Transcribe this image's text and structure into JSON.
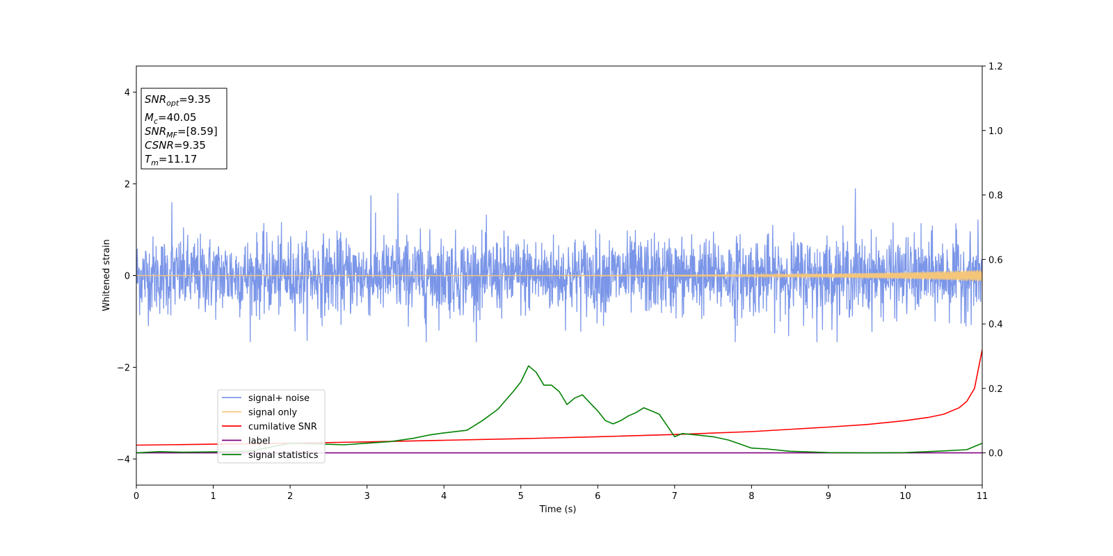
{
  "chart_data": {
    "type": "line",
    "xlabel": "Time (s)",
    "ylabel": "Whitened strain",
    "xlim": [
      0,
      11
    ],
    "ylim": [
      -4.57,
      4.57
    ],
    "y2lim": [
      -0.1,
      1.2
    ],
    "x_ticks": [
      0,
      1,
      2,
      3,
      4,
      5,
      6,
      7,
      8,
      9,
      10,
      11
    ],
    "y_ticks": [
      -4,
      -2,
      0,
      2,
      4
    ],
    "y_tick_labels": [
      "−4",
      "−2",
      "0",
      "2",
      "4"
    ],
    "y2_ticks": [
      0.0,
      0.2,
      0.4,
      0.6,
      0.8,
      1.0,
      1.2
    ],
    "y2_tick_labels": [
      "0.0",
      "0.2",
      "0.4",
      "0.6",
      "0.8",
      "1.0",
      "1.2"
    ],
    "grid": false,
    "legend_position": "lower-left",
    "annotation": [
      {
        "base": "SNR",
        "sub": "opt",
        "value": "=9.35"
      },
      {
        "base": "M",
        "sub": "c",
        "value": "=40.05"
      },
      {
        "base": "SNR",
        "sub": "MF",
        "value": "=[8.59]"
      },
      {
        "base": "CSNR",
        "sub": "",
        "value": "=9.35"
      },
      {
        "base": "T",
        "sub": "m",
        "value": "=11.17"
      }
    ],
    "series": [
      {
        "name": "signal+ noise",
        "color": "#7b96e8",
        "axis": "left",
        "kind": "noise",
        "amplitude_std": 0.42,
        "max": 1.9,
        "min": -1.45,
        "peaks": [
          [
            0.46,
            1.6
          ],
          [
            3.05,
            1.75
          ],
          [
            3.4,
            1.8
          ],
          [
            9.35,
            1.9
          ],
          [
            3.77,
            -1.45
          ],
          [
            7.79,
            -1.45
          ],
          [
            8.85,
            -1.45
          ]
        ]
      },
      {
        "name": "signal only",
        "color": "#f5c67a",
        "axis": "left",
        "kind": "chirp",
        "amp_start": 0.005,
        "amp_end": 0.13
      },
      {
        "name": "cumilative SNR",
        "color": "#ff0000",
        "axis": "right",
        "x": [
          0,
          1,
          2,
          3,
          4,
          5,
          6,
          7,
          8,
          9,
          9.5,
          10,
          10.3,
          10.5,
          10.7,
          10.8,
          10.9,
          11
        ],
        "y": [
          0.024,
          0.027,
          0.03,
          0.034,
          0.039,
          0.044,
          0.05,
          0.057,
          0.066,
          0.08,
          0.088,
          0.1,
          0.11,
          0.12,
          0.14,
          0.16,
          0.2,
          0.32
        ]
      },
      {
        "name": "label",
        "color": "#800080",
        "axis": "right",
        "x": [
          0,
          11
        ],
        "y": [
          0.0,
          0.0
        ]
      },
      {
        "name": "signal statistics",
        "color": "#008000",
        "axis": "right",
        "x": [
          0,
          0.3,
          0.6,
          1.0,
          1.5,
          2.0,
          2.3,
          2.7,
          3.0,
          3.3,
          3.6,
          3.8,
          4.0,
          4.3,
          4.5,
          4.7,
          4.9,
          5.0,
          5.1,
          5.2,
          5.3,
          5.4,
          5.5,
          5.6,
          5.7,
          5.8,
          5.9,
          6.0,
          6.1,
          6.2,
          6.3,
          6.4,
          6.5,
          6.6,
          6.7,
          6.8,
          6.9,
          7.0,
          7.1,
          7.3,
          7.5,
          7.7,
          8.0,
          8.2,
          8.5,
          9.0,
          9.5,
          10.0,
          10.5,
          10.8,
          11.0
        ],
        "y": [
          0.0,
          0.004,
          0.002,
          0.003,
          0.006,
          0.03,
          0.028,
          0.025,
          0.03,
          0.035,
          0.045,
          0.055,
          0.062,
          0.07,
          0.1,
          0.135,
          0.19,
          0.22,
          0.27,
          0.25,
          0.21,
          0.21,
          0.19,
          0.15,
          0.17,
          0.18,
          0.155,
          0.13,
          0.1,
          0.09,
          0.1,
          0.115,
          0.125,
          0.14,
          0.13,
          0.12,
          0.085,
          0.05,
          0.06,
          0.055,
          0.05,
          0.04,
          0.015,
          0.012,
          0.005,
          0.001,
          0.0,
          0.001,
          0.006,
          0.01,
          0.03
        ]
      }
    ]
  }
}
